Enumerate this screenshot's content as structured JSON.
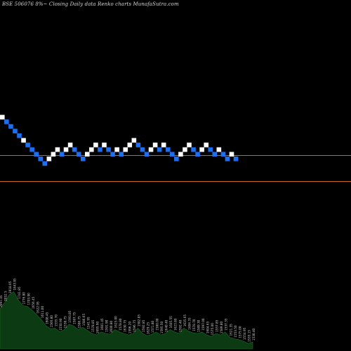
{
  "chart_data": {
    "type": "renko",
    "title": "BSE 506076  8%~  Closing Daily data  Renko  charts MunafaSutra.com",
    "colors": {
      "background": "#000000",
      "up_brick": "#ffffff",
      "down_brick": "#1e6ff0",
      "reference_line": "#c8641e",
      "volume_fill": "#0c3a12",
      "volume_text": "#d0d0d0"
    },
    "reference_lines": [
      1,
      0
    ],
    "bricks": [
      {
        "level": 6,
        "dir": "up"
      },
      {
        "level": 5,
        "dir": "down"
      },
      {
        "level": 4,
        "dir": "down"
      },
      {
        "level": 3,
        "dir": "down"
      },
      {
        "level": 2,
        "dir": "down"
      },
      {
        "level": 1,
        "dir": "up"
      },
      {
        "level": 0,
        "dir": "down"
      },
      {
        "level": -1,
        "dir": "down"
      },
      {
        "level": -2,
        "dir": "down"
      },
      {
        "level": -3,
        "dir": "down"
      },
      {
        "level": -4,
        "dir": "down"
      },
      {
        "level": -3,
        "dir": "up"
      },
      {
        "level": -2,
        "dir": "up"
      },
      {
        "level": -1,
        "dir": "up"
      },
      {
        "level": -2,
        "dir": "down"
      },
      {
        "level": -1,
        "dir": "up"
      },
      {
        "level": 0,
        "dir": "up"
      },
      {
        "level": -1,
        "dir": "down"
      },
      {
        "level": -2,
        "dir": "down"
      },
      {
        "level": -3,
        "dir": "down"
      },
      {
        "level": -2,
        "dir": "up"
      },
      {
        "level": -1,
        "dir": "up"
      },
      {
        "level": 0,
        "dir": "up"
      },
      {
        "level": -1,
        "dir": "down"
      },
      {
        "level": 0,
        "dir": "up"
      },
      {
        "level": -1,
        "dir": "down"
      },
      {
        "level": -2,
        "dir": "down"
      },
      {
        "level": -1,
        "dir": "up"
      },
      {
        "level": -2,
        "dir": "down"
      },
      {
        "level": -1,
        "dir": "up"
      },
      {
        "level": 0,
        "dir": "up"
      },
      {
        "level": 1,
        "dir": "up"
      },
      {
        "level": 0,
        "dir": "down"
      },
      {
        "level": -1,
        "dir": "down"
      },
      {
        "level": -2,
        "dir": "down"
      },
      {
        "level": -1,
        "dir": "up"
      },
      {
        "level": 0,
        "dir": "up"
      },
      {
        "level": -1,
        "dir": "down"
      },
      {
        "level": 0,
        "dir": "up"
      },
      {
        "level": -1,
        "dir": "down"
      },
      {
        "level": -2,
        "dir": "down"
      },
      {
        "level": -3,
        "dir": "down"
      },
      {
        "level": -2,
        "dir": "up"
      },
      {
        "level": -1,
        "dir": "up"
      },
      {
        "level": 0,
        "dir": "up"
      },
      {
        "level": -1,
        "dir": "down"
      },
      {
        "level": -2,
        "dir": "down"
      },
      {
        "level": -1,
        "dir": "up"
      },
      {
        "level": 0,
        "dir": "up"
      },
      {
        "level": -1,
        "dir": "down"
      },
      {
        "level": -2,
        "dir": "down"
      },
      {
        "level": -1,
        "dir": "up"
      },
      {
        "level": -2,
        "dir": "down"
      },
      {
        "level": -3,
        "dir": "down"
      },
      {
        "level": -2,
        "dir": "up"
      },
      {
        "level": -3,
        "dir": "down"
      }
    ],
    "volume": [
      0.52,
      0.6,
      0.7,
      0.74,
      0.63,
      0.56,
      0.55,
      0.5,
      0.44,
      0.38,
      0.3,
      0.26,
      0.27,
      0.22,
      0.25,
      0.32,
      0.3,
      0.25,
      0.28,
      0.24,
      0.2,
      0.18,
      0.22,
      0.2,
      0.19,
      0.25,
      0.22,
      0.2,
      0.18,
      0.2,
      0.27,
      0.2,
      0.17,
      0.19,
      0.22,
      0.18,
      0.2,
      0.25,
      0.22,
      0.2,
      0.27,
      0.23,
      0.21,
      0.2,
      0.22,
      0.18,
      0.16,
      0.2,
      0.18,
      0.22,
      0.15,
      0.13,
      0.12,
      0.1,
      0.07,
      0.09
    ],
    "volume_labels": [
      "2097.45",
      "2052.5",
      "1918.05",
      "1843.85",
      "1741.85",
      "1776.80",
      "1703.90",
      "1656.45",
      "1622.95",
      "1611.00",
      "1608.45",
      "1566.80",
      "1535.70",
      "1550.90",
      "1538.75",
      "1593.85",
      "1587.75",
      "1586.75",
      "1586.65",
      "1541.95",
      "1578.85",
      "1695.90",
      "1601.45",
      "1591.90",
      "1600.80",
      "1625.00",
      "1578.80",
      "1630.75",
      "1596.20",
      "1596.75",
      "1582.85",
      "1592.85",
      "1629.25",
      "1571.80",
      "1580.00",
      "1595.50",
      "1640.40",
      "1605.55",
      "1623.80",
      "1592.40",
      "1635.65",
      "1604.35",
      "1578.70",
      "1589.30",
      "1597.00",
      "1604.65",
      "1575.00",
      "1557.85",
      "1589.80",
      "1537.35",
      "1621.35",
      "1553.50",
      "1575.00",
      "1554.95",
      "1535.15",
      "1530.40"
    ]
  }
}
